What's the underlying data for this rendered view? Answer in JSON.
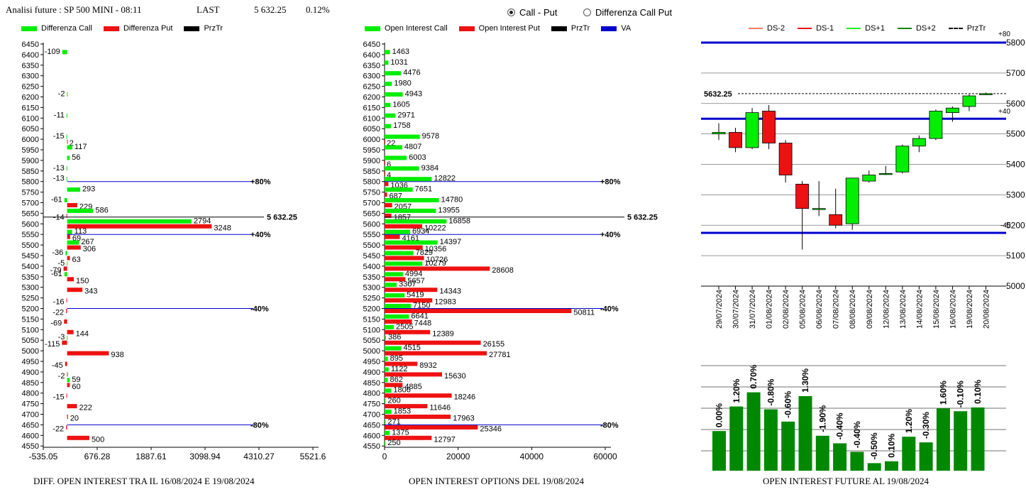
{
  "header": {
    "title": "Analisi future : SP 500 MINI - 08:11",
    "last_label": "LAST",
    "last_value": "5 632.25",
    "change": "0.12%"
  },
  "toggle": {
    "options": [
      {
        "label": "Call - Put",
        "selected": true
      },
      {
        "label": "Differenza Call Put",
        "selected": false
      }
    ]
  },
  "colors": {
    "call": "#00ee00",
    "put": "#ee1111",
    "price": "#000000",
    "va": "#0000cc",
    "up": "#00ee00",
    "down": "#ee1111",
    "oi_bar": "#008800"
  },
  "captions": {
    "left": "DIFF. OPEN INTEREST TRA IL 16/08/2024 E 19/08/2024",
    "middle": "OPEN INTEREST OPTIONS DEL 19/08/2024",
    "right": "OPEN INTEREST FUTURE AL 19/08/2024"
  },
  "chart_data": [
    {
      "id": "diff",
      "type": "bar",
      "orientation": "horizontal",
      "legend": [
        "Differenza Call",
        "Differenza Put",
        "PrzTr"
      ],
      "strikes": [
        6450,
        6400,
        6350,
        6300,
        6250,
        6200,
        6150,
        6100,
        6050,
        6000,
        5950,
        5900,
        5850,
        5800,
        5750,
        5700,
        5650,
        5600,
        5550,
        5500,
        5450,
        5400,
        5350,
        5300,
        5250,
        5200,
        5150,
        5100,
        5050,
        5000,
        4950,
        4900,
        4850,
        4800,
        4750,
        4700,
        4650,
        4600,
        4550
      ],
      "call_values": [
        null,
        -109,
        null,
        null,
        null,
        -2,
        null,
        -11,
        null,
        -15,
        117,
        56,
        -13,
        -13,
        293,
        -61,
        586,
        2794,
        113,
        267,
        -36,
        -5,
        -61,
        null,
        null,
        null,
        null,
        null,
        -3,
        null,
        null,
        null,
        59,
        null,
        null,
        null,
        null,
        null,
        null
      ],
      "put_values": [
        null,
        null,
        null,
        null,
        null,
        null,
        null,
        null,
        null,
        2,
        null,
        null,
        null,
        null,
        null,
        229,
        -14,
        3248,
        69,
        306,
        63,
        -79,
        150,
        343,
        -16,
        -22,
        -69,
        144,
        -115,
        938,
        -45,
        -2,
        60,
        -15,
        222,
        20,
        -22,
        500,
        null
      ],
      "x_ticks": [
        "-535.05",
        "676.28",
        "1887.61",
        "3098.94",
        "4310.27",
        "5521.6"
      ],
      "xlim": [
        -535.05,
        5521.6
      ],
      "price_line": {
        "value": 5632.25,
        "label": "5 632.25"
      },
      "levels": [
        {
          "value": 5800,
          "label": "+80%"
        },
        {
          "value": 5550,
          "label": "+40%"
        },
        {
          "value": 5200,
          "label": "-40%"
        },
        {
          "value": 4650,
          "label": "-80%"
        }
      ]
    },
    {
      "id": "oi",
      "type": "bar",
      "orientation": "horizontal",
      "legend": [
        "Open Interest Call",
        "Open Interest Put",
        "PrzTr",
        "VA"
      ],
      "strikes": [
        6450,
        6400,
        6350,
        6300,
        6250,
        6200,
        6150,
        6100,
        6050,
        6000,
        5950,
        5900,
        5850,
        5800,
        5750,
        5700,
        5650,
        5600,
        5550,
        5500,
        5450,
        5400,
        5350,
        5300,
        5250,
        5200,
        5150,
        5100,
        5050,
        5000,
        4950,
        4900,
        4850,
        4800,
        4750,
        4700,
        4650,
        4600,
        4550
      ],
      "call_values": [
        null,
        1463,
        1031,
        4476,
        1980,
        4943,
        1605,
        2971,
        1758,
        9578,
        4807,
        6003,
        9384,
        12822,
        7651,
        14780,
        13955,
        16858,
        6934,
        14397,
        7829,
        10279,
        4994,
        3307,
        5419,
        7150,
        6641,
        2505,
        386,
        4515,
        895,
        1122,
        862,
        1806,
        260,
        1853,
        271,
        1375,
        250
      ],
      "put_values": [
        null,
        null,
        null,
        null,
        null,
        null,
        null,
        null,
        null,
        22,
        null,
        6,
        4,
        1036,
        687,
        2057,
        1857,
        10222,
        4161,
        10356,
        10726,
        28608,
        5657,
        14343,
        12983,
        50811,
        7448,
        12389,
        26155,
        27781,
        8932,
        15630,
        4885,
        18246,
        11646,
        17963,
        25346,
        12797,
        null
      ],
      "x_ticks": [
        "0",
        "20000",
        "40000",
        "60000"
      ],
      "xlim": [
        0,
        60000
      ],
      "price_line": {
        "value": 5632.25,
        "label": "5 632.25"
      },
      "levels": [
        {
          "value": 5800,
          "label": "+80%"
        },
        {
          "value": 5550,
          "label": "+40%"
        },
        {
          "value": 5200,
          "label": "-40%"
        },
        {
          "value": 4650,
          "label": "-80%"
        }
      ]
    },
    {
      "id": "candles",
      "type": "candlestick",
      "legend": [
        "DS-2",
        "DS-1",
        "DS+1",
        "DS+2",
        "PrzTr"
      ],
      "legend_colors": [
        "#f08060",
        "#ee1111",
        "#22ee22",
        "#118811",
        "#000000"
      ],
      "dates": [
        "29/07/2024",
        "30/07/2024",
        "31/07/2024",
        "01/08/2024",
        "02/08/2024",
        "05/08/2024",
        "06/08/2024",
        "07/08/2024",
        "08/08/2024",
        "09/08/2024",
        "12/08/2024",
        "13/08/2024",
        "14/08/2024",
        "15/08/2024",
        "16/08/2024",
        "19/08/2024",
        "20/08/2024"
      ],
      "ohlc": [
        [
          5500,
          5535,
          5480,
          5505
        ],
        [
          5505,
          5520,
          5440,
          5455
        ],
        [
          5455,
          5585,
          5450,
          5570
        ],
        [
          5575,
          5595,
          5450,
          5470
        ],
        [
          5470,
          5480,
          5340,
          5365
        ],
        [
          5335,
          5345,
          5120,
          5255
        ],
        [
          5255,
          5345,
          5230,
          5255
        ],
        [
          5235,
          5320,
          5190,
          5200
        ],
        [
          5205,
          5350,
          5185,
          5355
        ],
        [
          5345,
          5380,
          5340,
          5365
        ],
        [
          5370,
          5395,
          5365,
          5370
        ],
        [
          5375,
          5465,
          5370,
          5460
        ],
        [
          5460,
          5495,
          5440,
          5485
        ],
        [
          5485,
          5580,
          5480,
          5575
        ],
        [
          5570,
          5590,
          5540,
          5585
        ],
        [
          5590,
          5630,
          5575,
          5625
        ],
        [
          5632.25,
          5636,
          5628,
          5632.25
        ]
      ],
      "y_ticks": [
        5000,
        5100,
        5200,
        5300,
        5400,
        5500,
        5600,
        5700,
        5800
      ],
      "ylim": [
        5000,
        5835
      ],
      "last_price": {
        "value": 5632.25,
        "label": "5632.25"
      },
      "bands": [
        {
          "value": 5800,
          "label": "+80"
        },
        {
          "value": 5550,
          "label": "+40"
        },
        {
          "value": 5175,
          "label": "-40"
        }
      ]
    },
    {
      "id": "oi_future",
      "type": "bar",
      "values": [
        0.0,
        1.2,
        0.7,
        -0.8,
        -0.6,
        1.3,
        -1.9,
        -0.4,
        -0.4,
        -0.5,
        0.1,
        1.2,
        -0.3,
        1.6,
        -0.1,
        0.1
      ],
      "labels": [
        "0.00%",
        "1.20%",
        "0.70%",
        "-0.80%",
        "-0.60%",
        "1.30%",
        "-1.90%",
        "-0.40%",
        "-0.40%",
        "-0.50%",
        "0.10%",
        "1.20%",
        "-0.30%",
        "1.60%",
        "-0.10%",
        "0.10%"
      ],
      "relative_heights": [
        0.42,
        0.68,
        0.83,
        0.65,
        0.52,
        0.79,
        0.37,
        0.29,
        0.2,
        0.08,
        0.1,
        0.36,
        0.3,
        0.66,
        0.63,
        0.67
      ],
      "grid": true
    }
  ]
}
